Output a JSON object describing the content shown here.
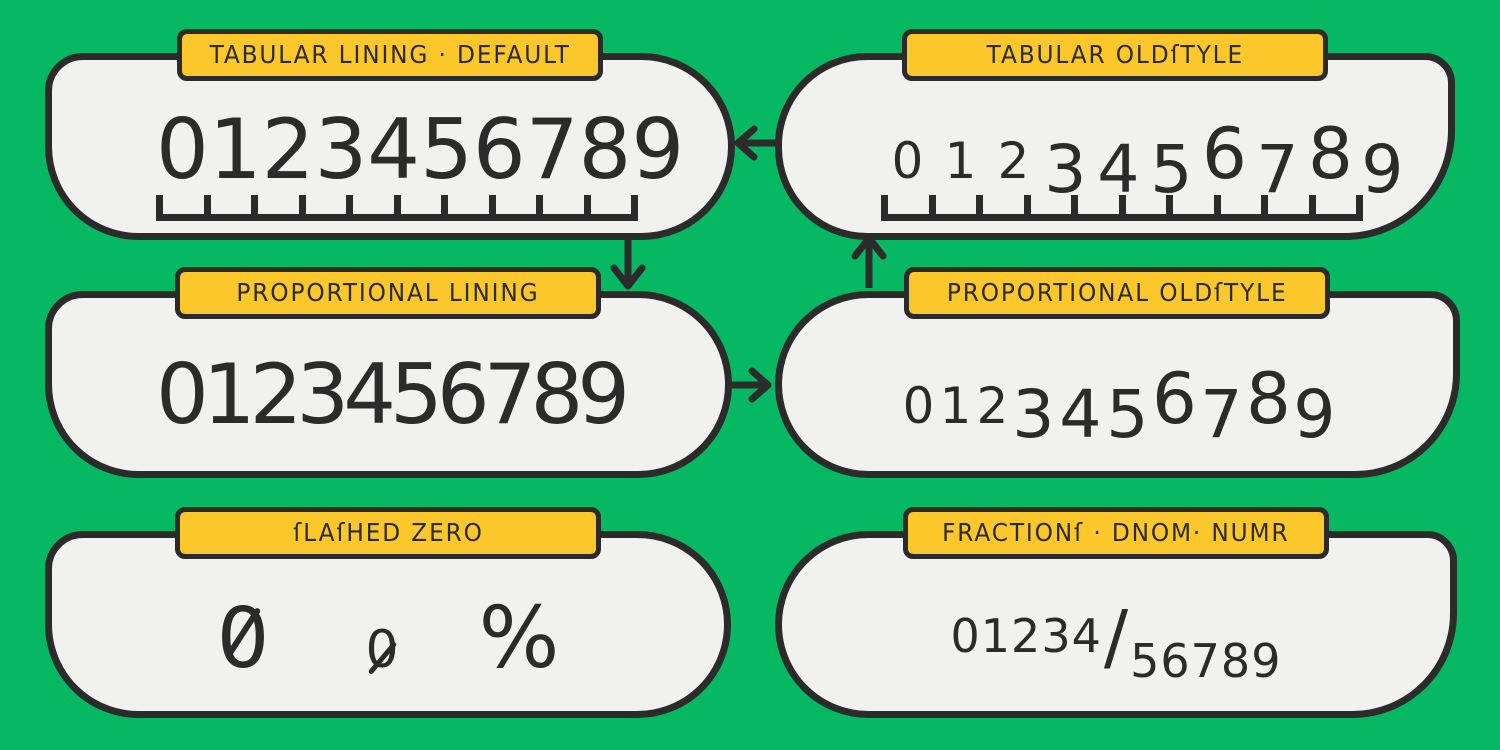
{
  "colors": {
    "background": "#06b862",
    "panel_fill": "#f1f1ef",
    "ink": "#2b2b2b",
    "label_background": "#fbc72b"
  },
  "panels": [
    {
      "id": "tabular-lining-default",
      "label": "TABULAR LINING · DEFAULT",
      "digits": "0123456789",
      "numeral_style": "tabular lining",
      "ruler_ticks": 11
    },
    {
      "id": "tabular-oldstyle",
      "label": "TABULAR OLDſTYLE",
      "digits": "0123456789",
      "numeral_style": "tabular oldstyle",
      "ruler_ticks": 11
    },
    {
      "id": "proportional-lining",
      "label": "PROPORTIONAL LINING",
      "digits": "0123456789",
      "numeral_style": "proportional lining"
    },
    {
      "id": "proportional-oldstyle",
      "label": "PROPORTIONAL OLDſTYLE",
      "digits": "0123456789",
      "numeral_style": "proportional oldstyle"
    },
    {
      "id": "slashed-zero",
      "label": "ſLAſHED ZERO",
      "glyphs": {
        "lining_zero": "0",
        "oldstyle_zero": "0",
        "percent": "%"
      }
    },
    {
      "id": "fractions",
      "label": "FRACTIONſ · DNOM· NUMR",
      "numerator": "01234",
      "slash": "/",
      "denominator": "56789"
    }
  ],
  "arrows": [
    {
      "id": "arrow-left",
      "direction": "left",
      "from": "tabular-oldstyle",
      "to": "tabular-lining-default"
    },
    {
      "id": "arrow-down",
      "direction": "down",
      "from": "tabular-lining-default",
      "to": "proportional-lining"
    },
    {
      "id": "arrow-up",
      "direction": "up",
      "from": "proportional-oldstyle",
      "to": "tabular-oldstyle"
    },
    {
      "id": "arrow-right",
      "direction": "right",
      "from": "proportional-lining",
      "to": "proportional-oldstyle"
    }
  ]
}
